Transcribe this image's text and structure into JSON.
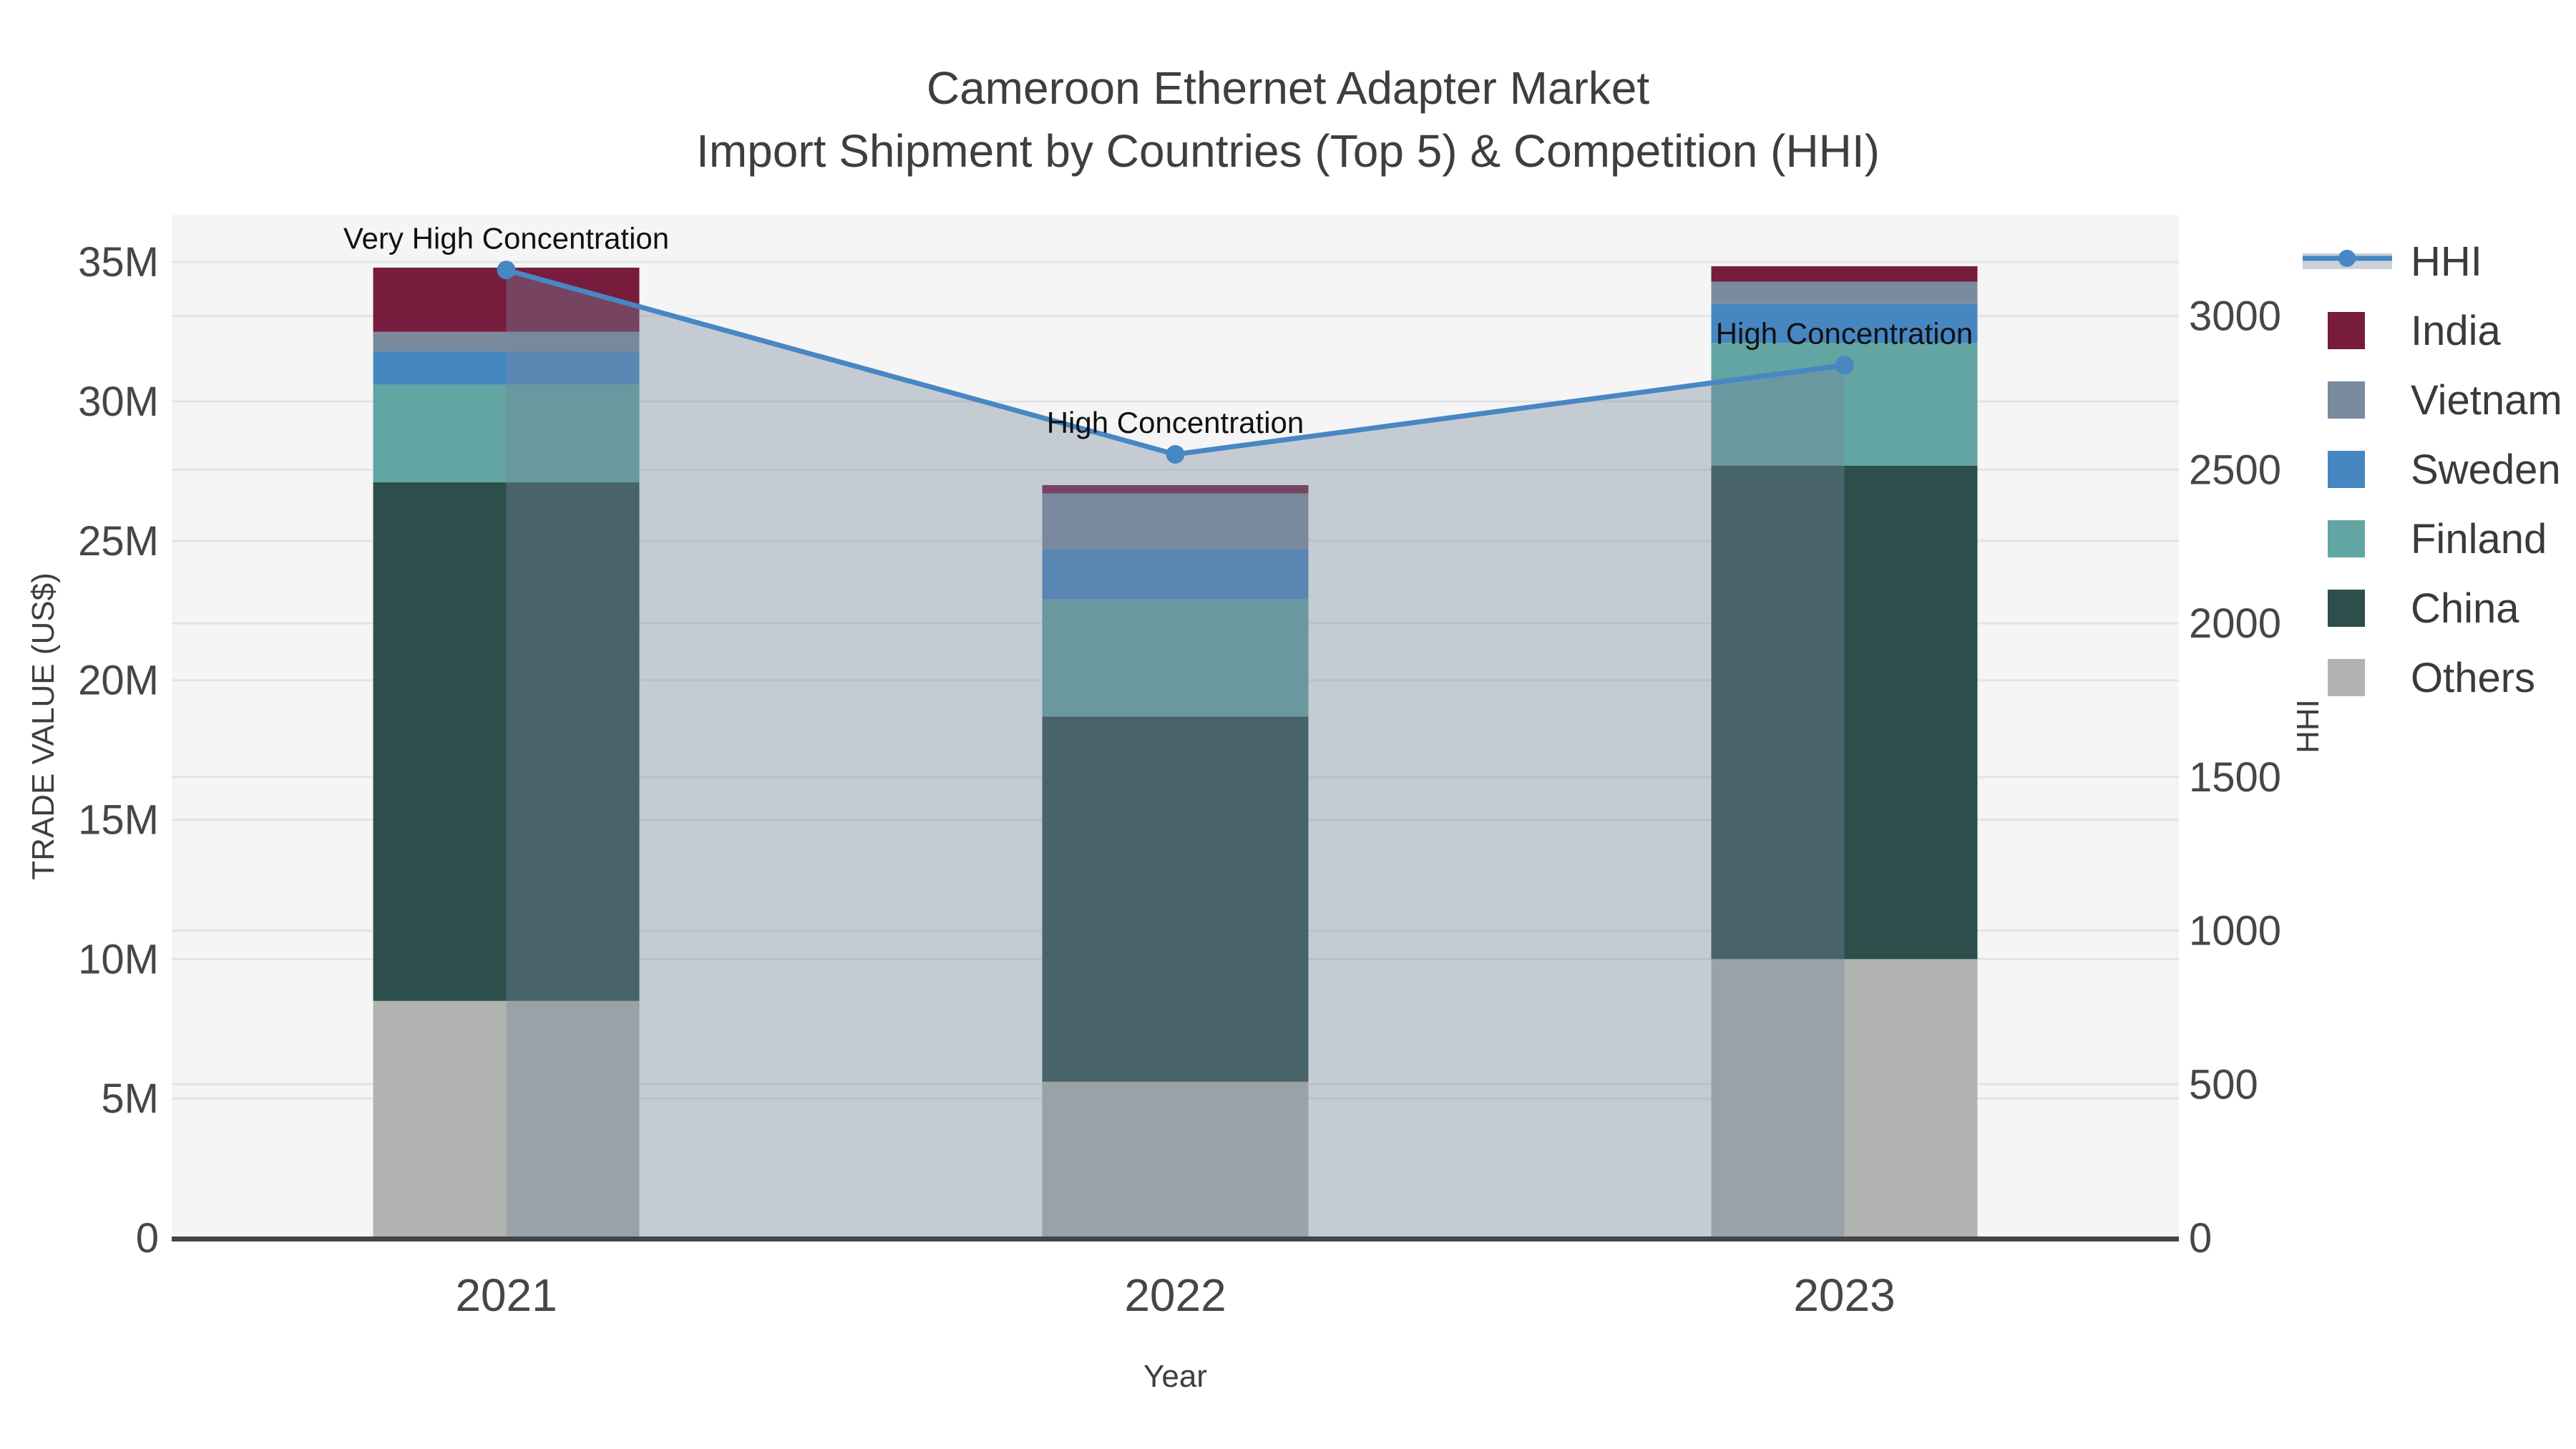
{
  "title": {
    "line1": "Cameroon Ethernet Adapter Market",
    "line2": "Import Shipment by Countries (Top 5) & Competition (HHI)"
  },
  "chart_data": {
    "type": "bar",
    "subtype": "stacked-bars-with-line-overlay",
    "categories": [
      "2021",
      "2022",
      "2023"
    ],
    "series": [
      {
        "name": "Others",
        "color": "#B1B3B1",
        "values": [
          8.5,
          5.6,
          10.0
        ]
      },
      {
        "name": "China",
        "color": "#2C4F4C",
        "values": [
          18.6,
          13.1,
          17.7
        ]
      },
      {
        "name": "Finland",
        "color": "#62A5A2",
        "values": [
          3.5,
          4.2,
          4.4
        ]
      },
      {
        "name": "Sweden",
        "color": "#4787C1",
        "values": [
          1.2,
          1.8,
          1.4
        ]
      },
      {
        "name": "Vietnam",
        "color": "#7B8B9E",
        "values": [
          0.7,
          2.0,
          0.8
        ]
      },
      {
        "name": "India",
        "color": "#771C3D",
        "values": [
          2.3,
          0.3,
          0.55
        ]
      }
    ],
    "line_series": {
      "name": "HHI",
      "color": "#4787C4",
      "fill_color": "rgba(119,133,155,0.38)",
      "values": [
        3150,
        2550,
        2840
      ],
      "axis": "y2"
    },
    "annotations": [
      {
        "category": "2021",
        "text": "Very High Concentration"
      },
      {
        "category": "2022",
        "text": "High Concentration"
      },
      {
        "category": "2023",
        "text": "High Concentration"
      }
    ],
    "y1_axis": {
      "title": "TRADE VALUE (US$)",
      "range": [
        0,
        36.7
      ],
      "ticks": [
        {
          "v": 0,
          "label": "0"
        },
        {
          "v": 5,
          "label": "5M"
        },
        {
          "v": 10,
          "label": "10M"
        },
        {
          "v": 15,
          "label": "15M"
        },
        {
          "v": 20,
          "label": "20M"
        },
        {
          "v": 25,
          "label": "25M"
        },
        {
          "v": 30,
          "label": "30M"
        },
        {
          "v": 35,
          "label": "35M"
        }
      ]
    },
    "y2_axis": {
      "title": "HHI",
      "range": [
        0,
        3330
      ],
      "ticks": [
        {
          "v": 0,
          "label": "0"
        },
        {
          "v": 500,
          "label": "500"
        },
        {
          "v": 1000,
          "label": "1000"
        },
        {
          "v": 1500,
          "label": "1500"
        },
        {
          "v": 2000,
          "label": "2000"
        },
        {
          "v": 2500,
          "label": "2500"
        },
        {
          "v": 3000,
          "label": "3000"
        }
      ]
    },
    "x_axis": {
      "title": "Year"
    },
    "legend": {
      "order": [
        "HHI",
        "India",
        "Vietnam",
        "Sweden",
        "Finland",
        "China",
        "Others"
      ]
    },
    "colors": {
      "plot_bg": "#F5F5F5",
      "page_bg": "#FFFFFF",
      "gridline": "#E4E4E6",
      "spine": "#42464A",
      "tick_text": "#464646",
      "axis_title_text": "#3E3E3E",
      "legend_text": "#3A3A3A",
      "annotation_text": "#111111"
    }
  }
}
